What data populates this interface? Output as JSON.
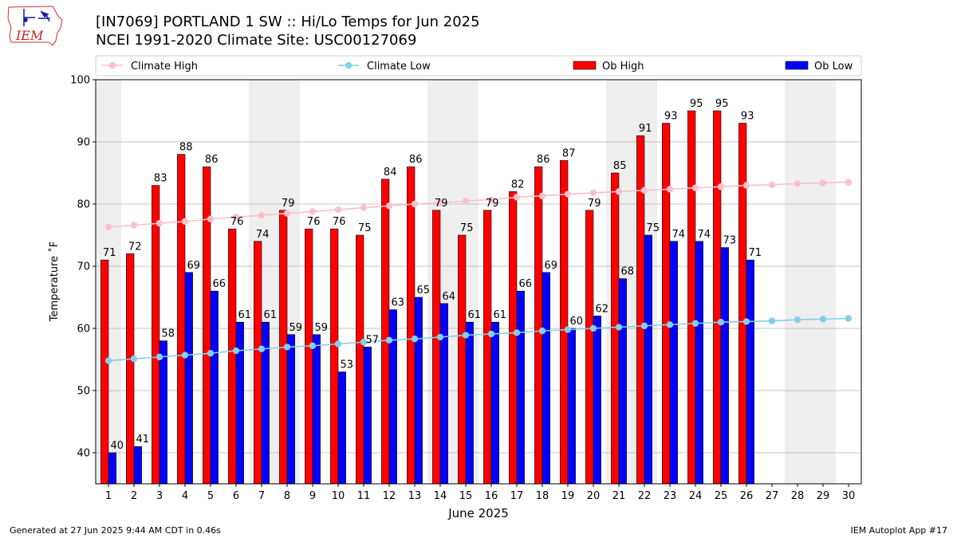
{
  "header": {
    "title_line1": "[IN7069] PORTLAND 1 SW :: Hi/Lo Temps for Jun 2025",
    "title_line2": "NCEI 1991-2020 Climate Site: USC00127069",
    "logo_text": "IEM"
  },
  "footer": {
    "generated": "Generated at 27 Jun 2025 9:44 AM CDT in 0.46s",
    "app": "IEM Autoplot App #17"
  },
  "chart_data": {
    "type": "bar",
    "xlabel": "June 2025",
    "ylabel": "Temperature ˚F",
    "ylim": [
      35,
      100
    ],
    "yticks": [
      40,
      50,
      60,
      70,
      80,
      90,
      100
    ],
    "xlim": [
      0.5,
      30.5
    ],
    "days": [
      1,
      2,
      3,
      4,
      5,
      6,
      7,
      8,
      9,
      10,
      11,
      12,
      13,
      14,
      15,
      16,
      17,
      18,
      19,
      20,
      21,
      22,
      23,
      24,
      25,
      26,
      27,
      28,
      29,
      30
    ],
    "weekend_days": [
      1,
      7,
      8,
      14,
      15,
      21,
      22,
      28,
      29
    ],
    "grid": "horizontal",
    "legend_placement": "top",
    "series": [
      {
        "name": "Climate High",
        "kind": "line",
        "color": "#ffc0cb",
        "values": [
          76.3,
          76.6,
          76.9,
          77.2,
          77.6,
          77.9,
          78.2,
          78.5,
          78.8,
          79.1,
          79.4,
          79.7,
          80.0,
          80.2,
          80.5,
          80.7,
          81.1,
          81.3,
          81.6,
          81.8,
          82.0,
          82.2,
          82.4,
          82.6,
          82.8,
          83.0,
          83.1,
          83.3,
          83.4,
          83.5
        ]
      },
      {
        "name": "Climate Low",
        "kind": "line",
        "color": "#87ceeb",
        "values": [
          54.8,
          55.1,
          55.4,
          55.7,
          56.0,
          56.4,
          56.7,
          57.0,
          57.2,
          57.5,
          57.8,
          58.1,
          58.3,
          58.6,
          58.9,
          59.1,
          59.3,
          59.6,
          59.8,
          60.0,
          60.2,
          60.4,
          60.6,
          60.8,
          61.0,
          61.1,
          61.2,
          61.4,
          61.5,
          61.6
        ]
      },
      {
        "name": "Ob High",
        "kind": "bar",
        "color": "#ff0000",
        "values": [
          71,
          72,
          83,
          88,
          86,
          76,
          74,
          79,
          76,
          76,
          75,
          84,
          86,
          79,
          75,
          79,
          82,
          86,
          87,
          79,
          85,
          91,
          93,
          95,
          95,
          93
        ]
      },
      {
        "name": "Ob Low",
        "kind": "bar",
        "color": "#0000ff",
        "values": [
          40,
          41,
          58,
          69,
          66,
          61,
          61,
          59,
          59,
          53,
          57,
          63,
          65,
          64,
          61,
          61,
          66,
          69,
          60,
          62,
          68,
          75,
          74,
          74,
          73,
          71
        ]
      }
    ]
  }
}
